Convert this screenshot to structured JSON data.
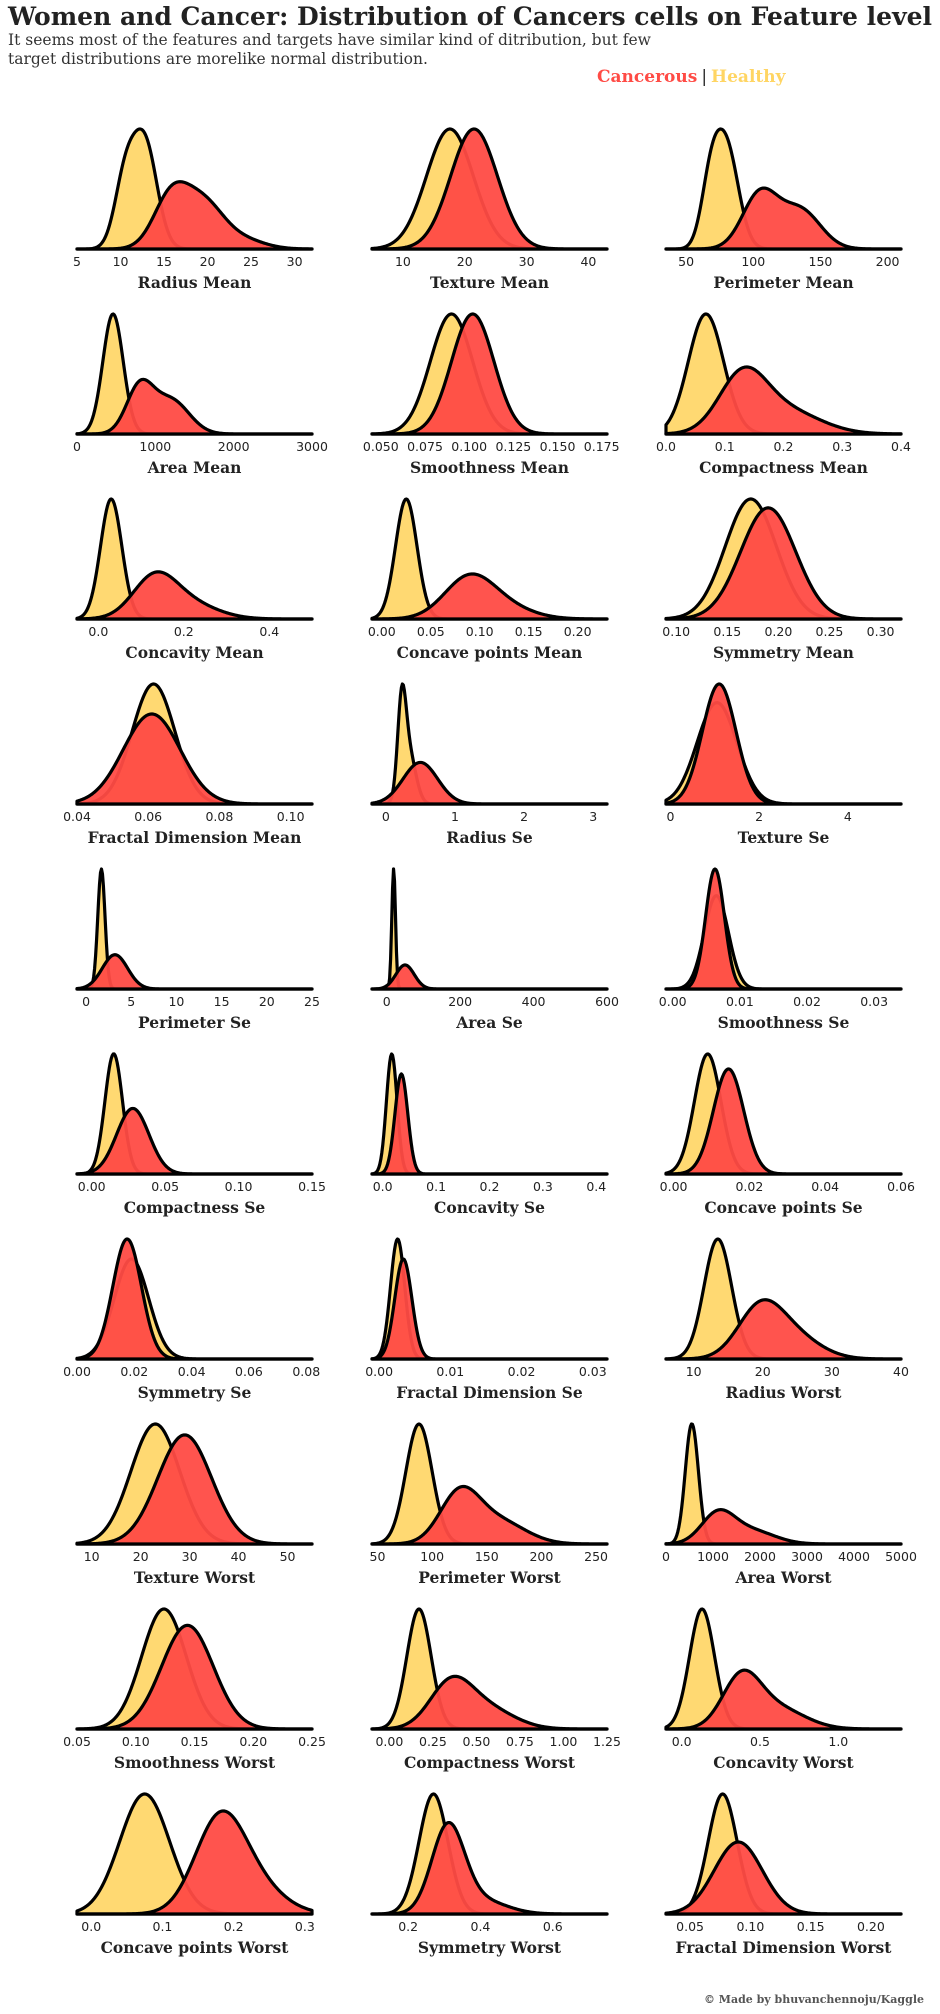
{
  "title": "Women and Cancer: Distribution of Cancers cells on Feature level",
  "subtitle": "It seems most of the features and targets have similar kind of ditribution, but few target distributions are morelike normal distribution.",
  "legend": {
    "cancerous": "Cancerous",
    "separator": "|",
    "healthy": "Healthy"
  },
  "credit": "© Made by bhuvanchennoju/Kaggle",
  "colors": {
    "cancerous": "#FF4B45",
    "healthy": "#FFD563",
    "outline": "#000000",
    "text": "#222222"
  },
  "chart_data": [
    {
      "type": "area",
      "xlabel": "Radius Mean",
      "xlim": [
        5,
        32
      ],
      "ticks": [
        5,
        10,
        15,
        20,
        25,
        30
      ],
      "series": [
        {
          "name": "Healthy",
          "components": [
            [
              0.35,
              10.5,
              1.2
            ],
            [
              0.65,
              12.8,
              1.4
            ]
          ]
        },
        {
          "name": "Cancerous",
          "components": [
            [
              0.45,
              15.8,
              2.0
            ],
            [
              0.45,
              19.5,
              2.3
            ],
            [
              0.1,
              24,
              2.5
            ]
          ]
        }
      ]
    },
    {
      "type": "area",
      "xlabel": "Texture Mean",
      "xlim": [
        5,
        43
      ],
      "ticks": [
        10,
        20,
        30,
        40
      ],
      "series": [
        {
          "name": "Healthy",
          "components": [
            [
              1,
              17.6,
              3.8
            ]
          ]
        },
        {
          "name": "Cancerous",
          "components": [
            [
              1,
              21.5,
              3.8
            ]
          ]
        }
      ]
    },
    {
      "type": "area",
      "xlabel": "Perimeter Mean",
      "xlim": [
        35,
        210
      ],
      "ticks": [
        50,
        100,
        150,
        200
      ],
      "series": [
        {
          "name": "Healthy",
          "components": [
            [
              0.3,
              68,
              7
            ],
            [
              0.7,
              80,
              9
            ]
          ]
        },
        {
          "name": "Cancerous",
          "components": [
            [
              0.55,
              105,
              13
            ],
            [
              0.45,
              135,
              15
            ]
          ]
        }
      ]
    },
    {
      "type": "area",
      "xlabel": "Area Mean",
      "xlim": [
        0,
        3000
      ],
      "ticks": [
        0,
        1000,
        2000,
        3000
      ],
      "series": [
        {
          "name": "Healthy",
          "components": [
            [
              1,
              460,
              130
            ]
          ]
        },
        {
          "name": "Cancerous",
          "components": [
            [
              0.5,
              800,
              170
            ],
            [
              0.5,
              1200,
              230
            ]
          ]
        }
      ]
    },
    {
      "type": "area",
      "xlabel": "Smoothness Mean",
      "xlim": [
        0.045,
        0.178
      ],
      "ticks": [
        0.05,
        0.075,
        0.1,
        0.125,
        0.15,
        0.175
      ],
      "tick_decimals": 3,
      "series": [
        {
          "name": "Healthy",
          "components": [
            [
              1,
              0.09,
              0.012
            ]
          ]
        },
        {
          "name": "Cancerous",
          "components": [
            [
              1,
              0.102,
              0.012
            ]
          ]
        }
      ]
    },
    {
      "type": "area",
      "xlabel": "Compactness Mean",
      "xlim": [
        0,
        0.4
      ],
      "ticks": [
        0,
        0.1,
        0.2,
        0.3,
        0.4
      ],
      "tick_decimals": 1,
      "series": [
        {
          "name": "Healthy",
          "components": [
            [
              1,
              0.068,
              0.03
            ]
          ]
        },
        {
          "name": "Cancerous",
          "components": [
            [
              0.6,
              0.13,
              0.04
            ],
            [
              0.4,
              0.2,
              0.06
            ]
          ]
        }
      ]
    },
    {
      "type": "area",
      "xlabel": "Concavity Mean",
      "xlim": [
        -0.05,
        0.5
      ],
      "ticks": [
        0,
        0.2,
        0.4
      ],
      "tick_decimals": 1,
      "series": [
        {
          "name": "Healthy",
          "components": [
            [
              1,
              0.03,
              0.025
            ]
          ]
        },
        {
          "name": "Cancerous",
          "components": [
            [
              0.6,
              0.13,
              0.05
            ],
            [
              0.4,
              0.2,
              0.07
            ]
          ]
        }
      ]
    },
    {
      "type": "area",
      "xlabel": "Concave points Mean",
      "xlim": [
        -0.01,
        0.23
      ],
      "ticks": [
        0,
        0.05,
        0.1,
        0.15,
        0.2
      ],
      "tick_decimals": 2,
      "series": [
        {
          "name": "Healthy",
          "components": [
            [
              1,
              0.025,
              0.011
            ]
          ]
        },
        {
          "name": "Cancerous",
          "components": [
            [
              0.7,
              0.088,
              0.025
            ],
            [
              0.3,
              0.12,
              0.03
            ]
          ]
        }
      ]
    },
    {
      "type": "area",
      "xlabel": "Symmetry Mean",
      "xlim": [
        0.09,
        0.32
      ],
      "ticks": [
        0.1,
        0.15,
        0.2,
        0.25,
        0.3
      ],
      "tick_decimals": 2,
      "series": [
        {
          "name": "Healthy",
          "components": [
            [
              1,
              0.173,
              0.025
            ]
          ]
        },
        {
          "name": "Cancerous",
          "components": [
            [
              1,
              0.19,
              0.027
            ]
          ]
        }
      ]
    },
    {
      "type": "area",
      "xlabel": "Fractal Dimension Mean",
      "xlim": [
        0.04,
        0.106
      ],
      "ticks": [
        0.04,
        0.06,
        0.08,
        0.1
      ],
      "tick_decimals": 2,
      "series": [
        {
          "name": "Healthy",
          "components": [
            [
              1,
              0.0615,
              0.006
            ]
          ]
        },
        {
          "name": "Cancerous",
          "components": [
            [
              1,
              0.061,
              0.008
            ]
          ]
        }
      ]
    },
    {
      "type": "area",
      "xlabel": "Radius Se",
      "xlim": [
        -0.2,
        3.2
      ],
      "ticks": [
        0,
        1,
        2,
        3
      ],
      "series": [
        {
          "name": "Healthy",
          "components": [
            [
              0.5,
              0.23,
              0.06
            ],
            [
              0.5,
              0.33,
              0.1
            ]
          ]
        },
        {
          "name": "Cancerous",
          "components": [
            [
              1,
              0.5,
              0.25
            ]
          ]
        }
      ]
    },
    {
      "type": "area",
      "xlabel": "Texture Se",
      "xlim": [
        -0.1,
        5.2
      ],
      "ticks": [
        0,
        2,
        4
      ],
      "series": [
        {
          "name": "Healthy",
          "components": [
            [
              1,
              1.05,
              0.45
            ]
          ]
        },
        {
          "name": "Cancerous",
          "components": [
            [
              1,
              1.1,
              0.38
            ]
          ]
        }
      ]
    },
    {
      "type": "area",
      "xlabel": "Perimeter Se",
      "xlim": [
        -1,
        25
      ],
      "ticks": [
        0,
        5,
        10,
        15,
        20,
        25
      ],
      "series": [
        {
          "name": "Healthy",
          "components": [
            [
              1,
              1.7,
              0.4
            ]
          ]
        },
        {
          "name": "Cancerous",
          "components": [
            [
              1,
              3.2,
              1.4
            ]
          ]
        }
      ]
    },
    {
      "type": "area",
      "xlabel": "Area Se",
      "xlim": [
        -40,
        600
      ],
      "ticks": [
        0,
        200,
        400,
        600
      ],
      "series": [
        {
          "name": "Healthy",
          "components": [
            [
              1,
              19,
              5
            ]
          ]
        },
        {
          "name": "Cancerous",
          "components": [
            [
              1,
              50,
              25
            ]
          ]
        }
      ]
    },
    {
      "type": "area",
      "xlabel": "Smoothness Se",
      "xlim": [
        -0.001,
        0.034
      ],
      "ticks": [
        0,
        0.01,
        0.02,
        0.03
      ],
      "tick_decimals": 2,
      "series": [
        {
          "name": "Healthy",
          "components": [
            [
              1,
              0.0065,
              0.0018
            ]
          ]
        },
        {
          "name": "Cancerous",
          "components": [
            [
              1,
              0.0063,
              0.0014
            ]
          ]
        }
      ]
    },
    {
      "type": "area",
      "xlabel": "Compactness Se",
      "xlim": [
        -0.01,
        0.15
      ],
      "ticks": [
        0,
        0.05,
        0.1,
        0.15
      ],
      "tick_decimals": 2,
      "series": [
        {
          "name": "Healthy",
          "components": [
            [
              1,
              0.015,
              0.006
            ]
          ]
        },
        {
          "name": "Cancerous",
          "components": [
            [
              1,
              0.028,
              0.011
            ]
          ]
        }
      ]
    },
    {
      "type": "area",
      "xlabel": "Concavity Se",
      "xlim": [
        -0.02,
        0.42
      ],
      "ticks": [
        0,
        0.1,
        0.2,
        0.3,
        0.4
      ],
      "tick_decimals": 1,
      "series": [
        {
          "name": "Healthy",
          "components": [
            [
              1,
              0.017,
              0.01
            ]
          ]
        },
        {
          "name": "Cancerous",
          "components": [
            [
              1,
              0.035,
              0.012
            ]
          ]
        }
      ]
    },
    {
      "type": "area",
      "xlabel": "Concave points Se",
      "xlim": [
        -0.002,
        0.06
      ],
      "ticks": [
        0,
        0.02,
        0.04,
        0.06
      ],
      "tick_decimals": 2,
      "series": [
        {
          "name": "Healthy",
          "components": [
            [
              1,
              0.009,
              0.0035
            ]
          ]
        },
        {
          "name": "Cancerous",
          "components": [
            [
              1,
              0.0145,
              0.004
            ]
          ]
        }
      ]
    },
    {
      "type": "area",
      "xlabel": "Symmetry Se",
      "xlim": [
        0,
        0.082
      ],
      "ticks": [
        0,
        0.02,
        0.04,
        0.06,
        0.08
      ],
      "tick_decimals": 2,
      "series": [
        {
          "name": "Healthy",
          "components": [
            [
              1,
              0.019,
              0.006
            ]
          ]
        },
        {
          "name": "Cancerous",
          "components": [
            [
              1,
              0.0175,
              0.005
            ]
          ]
        }
      ]
    },
    {
      "type": "area",
      "xlabel": "Fractal Dimension Se",
      "xlim": [
        -0.001,
        0.032
      ],
      "ticks": [
        0,
        0.01,
        0.02,
        0.03
      ],
      "tick_decimals": 2,
      "series": [
        {
          "name": "Healthy",
          "components": [
            [
              1,
              0.0026,
              0.001
            ]
          ]
        },
        {
          "name": "Cancerous",
          "components": [
            [
              1,
              0.0034,
              0.0012
            ]
          ]
        }
      ]
    },
    {
      "type": "area",
      "xlabel": "Radius Worst",
      "xlim": [
        6,
        40
      ],
      "ticks": [
        10,
        20,
        30,
        40
      ],
      "series": [
        {
          "name": "Healthy",
          "components": [
            [
              1,
              13.5,
              2
            ]
          ]
        },
        {
          "name": "Cancerous",
          "components": [
            [
              0.6,
              19.5,
              3.2
            ],
            [
              0.4,
              24,
              4
            ]
          ]
        }
      ]
    },
    {
      "type": "area",
      "xlabel": "Texture Worst",
      "xlim": [
        7,
        55
      ],
      "ticks": [
        10,
        20,
        30,
        40,
        50
      ],
      "series": [
        {
          "name": "Healthy",
          "components": [
            [
              1,
              23,
              5
            ]
          ]
        },
        {
          "name": "Cancerous",
          "components": [
            [
              1,
              29,
              5.5
            ]
          ]
        }
      ]
    },
    {
      "type": "area",
      "xlabel": "Perimeter Worst",
      "xlim": [
        45,
        260
      ],
      "ticks": [
        50,
        100,
        150,
        200,
        250
      ],
      "series": [
        {
          "name": "Healthy",
          "components": [
            [
              1,
              88,
              12
            ]
          ]
        },
        {
          "name": "Cancerous",
          "components": [
            [
              0.6,
              125,
              18
            ],
            [
              0.4,
              160,
              25
            ]
          ]
        }
      ]
    },
    {
      "type": "area",
      "xlabel": "Area Worst",
      "xlim": [
        0,
        5000
      ],
      "ticks": [
        0,
        1000,
        2000,
        3000,
        4000,
        5000
      ],
      "series": [
        {
          "name": "Healthy",
          "components": [
            [
              1,
              550,
              140
            ]
          ]
        },
        {
          "name": "Cancerous",
          "components": [
            [
              0.6,
              1100,
              350
            ],
            [
              0.4,
              1800,
              500
            ]
          ]
        }
      ]
    },
    {
      "type": "area",
      "xlabel": "Smoothness Worst",
      "xlim": [
        0.05,
        0.25
      ],
      "ticks": [
        0.05,
        0.1,
        0.15,
        0.2,
        0.25
      ],
      "tick_decimals": 2,
      "series": [
        {
          "name": "Healthy",
          "components": [
            [
              1,
              0.124,
              0.019
            ]
          ]
        },
        {
          "name": "Cancerous",
          "components": [
            [
              1,
              0.144,
              0.022
            ]
          ]
        }
      ]
    },
    {
      "type": "area",
      "xlabel": "Compactness Worst",
      "xlim": [
        -0.1,
        1.25
      ],
      "ticks": [
        0,
        0.25,
        0.5,
        0.75,
        1,
        1.25
      ],
      "tick_decimals": 2,
      "series": [
        {
          "name": "Healthy",
          "components": [
            [
              1,
              0.17,
              0.07
            ]
          ]
        },
        {
          "name": "Cancerous",
          "components": [
            [
              0.6,
              0.35,
              0.12
            ],
            [
              0.4,
              0.55,
              0.16
            ]
          ]
        }
      ]
    },
    {
      "type": "area",
      "xlabel": "Concavity Worst",
      "xlim": [
        -0.1,
        1.4
      ],
      "ticks": [
        0,
        0.5,
        1
      ],
      "tick_decimals": 1,
      "series": [
        {
          "name": "Healthy",
          "components": [
            [
              1,
              0.13,
              0.08
            ]
          ]
        },
        {
          "name": "Cancerous",
          "components": [
            [
              0.6,
              0.38,
              0.12
            ],
            [
              0.4,
              0.6,
              0.18
            ]
          ]
        }
      ]
    },
    {
      "type": "area",
      "xlabel": "Concave points Worst",
      "xlim": [
        -0.02,
        0.31
      ],
      "ticks": [
        0,
        0.1,
        0.2,
        0.3
      ],
      "tick_decimals": 1,
      "series": [
        {
          "name": "Healthy",
          "components": [
            [
              1,
              0.075,
              0.035
            ]
          ]
        },
        {
          "name": "Cancerous",
          "components": [
            [
              0.75,
              0.18,
              0.035
            ],
            [
              0.25,
              0.23,
              0.04
            ]
          ]
        }
      ]
    },
    {
      "type": "area",
      "xlabel": "Symmetry Worst",
      "xlim": [
        0.1,
        0.75
      ],
      "ticks": [
        0.2,
        0.4,
        0.6
      ],
      "tick_decimals": 1,
      "series": [
        {
          "name": "Healthy",
          "components": [
            [
              1,
              0.27,
              0.04
            ]
          ]
        },
        {
          "name": "Cancerous",
          "components": [
            [
              0.8,
              0.31,
              0.045
            ],
            [
              0.2,
              0.4,
              0.07
            ]
          ]
        }
      ]
    },
    {
      "type": "area",
      "xlabel": "Fractal Dimension Worst",
      "xlim": [
        0.03,
        0.225
      ],
      "ticks": [
        0.05,
        0.1,
        0.15,
        0.2
      ],
      "tick_decimals": 2,
      "series": [
        {
          "name": "Healthy",
          "components": [
            [
              1,
              0.077,
              0.012
            ]
          ]
        },
        {
          "name": "Cancerous",
          "components": [
            [
              1,
              0.09,
              0.02
            ]
          ]
        }
      ]
    }
  ]
}
